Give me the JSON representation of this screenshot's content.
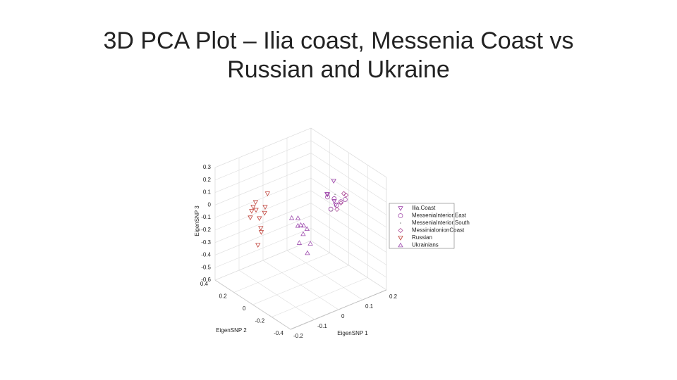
{
  "chart_data": {
    "type": "scatter3d",
    "title": "3D PCA Plot – Ilia coast, Messenia Coast vs Russian and Ukraine",
    "xlabel": "EigenSNP 1",
    "ylabel": "EigenSNP 2",
    "zlabel": "EigenSNP 3",
    "xlim": [
      -0.2,
      0.2
    ],
    "xticks": [
      -0.2,
      -0.1,
      0,
      0.1,
      0.2
    ],
    "ylim": [
      -0.4,
      0.4
    ],
    "yticks": [
      -0.4,
      -0.2,
      0,
      0.2,
      0.4
    ],
    "zlim": [
      -0.6,
      0.3
    ],
    "zticks": [
      -0.6,
      -0.5,
      -0.4,
      -0.3,
      -0.2,
      -0.1,
      0,
      0.1,
      0.2,
      0.3
    ],
    "grid": true,
    "legend": "right",
    "series": [
      {
        "name": "Ilia.Coast",
        "marker": "triangle-down",
        "color": "#9b3fa8",
        "x": [
          0.08,
          0.1,
          0.09,
          0.11,
          0.07
        ],
        "y": [
          -0.08,
          -0.1,
          -0.12,
          -0.09,
          -0.1
        ],
        "z": [
          0.1,
          0.04,
          0.22,
          0.0,
          0.12
        ]
      },
      {
        "name": "MesseniaInterior.East",
        "marker": "circle",
        "color": "#a04aa8",
        "x": [
          0.1,
          0.12,
          0.08,
          0.11,
          0.13,
          0.09
        ],
        "y": [
          -0.1,
          -0.12,
          -0.08,
          -0.1,
          -0.14,
          -0.09
        ],
        "z": [
          0.06,
          0.03,
          0.08,
          0.0,
          0.05,
          -0.02
        ]
      },
      {
        "name": "MesseniaInterior.South",
        "marker": "dot",
        "color": "#666666",
        "x": [
          0.09,
          0.1
        ],
        "y": [
          -0.1,
          -0.11
        ],
        "z": [
          -0.03,
          0.1
        ]
      },
      {
        "name": "MessiniaIonionCoast",
        "marker": "diamond",
        "color": "#b0509a",
        "x": [
          0.12,
          0.14,
          0.1,
          0.13
        ],
        "y": [
          -0.12,
          -0.1,
          -0.13,
          -0.15
        ],
        "z": [
          0.02,
          0.07,
          -0.01,
          0.09
        ]
      },
      {
        "name": "Russian",
        "marker": "triangle-down",
        "color": "#c0443c",
        "x": [
          -0.12,
          -0.1,
          -0.08,
          -0.11,
          -0.09,
          -0.13,
          -0.07,
          -0.1,
          -0.12,
          -0.06,
          -0.09,
          -0.1
        ],
        "y": [
          0.2,
          0.22,
          0.18,
          0.2,
          0.21,
          0.19,
          0.2,
          0.17,
          0.23,
          0.2,
          0.19,
          0.2
        ],
        "z": [
          0.02,
          -0.03,
          -0.05,
          0.05,
          -0.1,
          0.0,
          -0.02,
          -0.15,
          -0.08,
          0.08,
          -0.2,
          -0.3
        ]
      },
      {
        "name": "Ukrainians",
        "marker": "triangle-up",
        "color": "#a050b0",
        "x": [
          0.0,
          0.02,
          -0.02,
          0.01,
          0.03,
          -0.01,
          0.0,
          0.04,
          -0.03,
          0.02
        ],
        "y": [
          0.0,
          0.02,
          -0.02,
          0.0,
          0.01,
          -0.01,
          0.03,
          0.0,
          0.02,
          -0.02
        ],
        "z": [
          -0.12,
          -0.15,
          -0.1,
          -0.2,
          -0.18,
          -0.25,
          -0.08,
          -0.3,
          -0.05,
          -0.35
        ]
      }
    ]
  }
}
